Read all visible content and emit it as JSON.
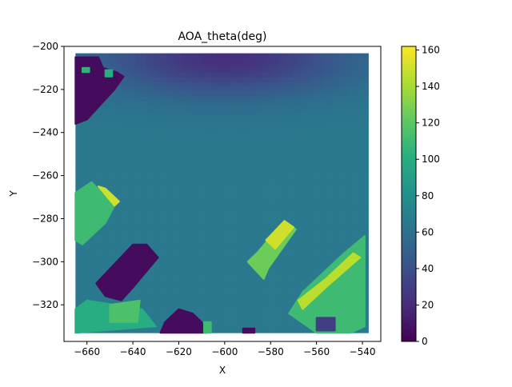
{
  "chart_data": {
    "type": "heatmap",
    "title": "AOA_theta(deg)",
    "xlabel": "X",
    "ylabel": "Y",
    "xlim": [
      -670,
      -532
    ],
    "ylim": [
      -337,
      -200
    ],
    "xticks": [
      -660,
      -640,
      -620,
      -600,
      -580,
      -560,
      -540
    ],
    "yticks": [
      -200,
      -220,
      -240,
      -260,
      -280,
      -300,
      -320
    ],
    "grid": false,
    "colormap": "viridis",
    "colorbar": {
      "min": 0,
      "max": 162,
      "ticks": [
        0,
        20,
        40,
        60,
        80,
        100,
        120,
        140,
        160
      ]
    },
    "extent": {
      "x": [
        -665,
        -539
      ],
      "y": [
        -333,
        -205
      ]
    },
    "background_field": {
      "description_values": "base value ~65 deg, decreasing toward top center",
      "base": 65,
      "top_center": {
        "x": -600,
        "y": -205,
        "value": 22,
        "spread_x": 55,
        "spread_y": 18
      }
    },
    "regions": [
      {
        "id": "dark-top-left",
        "value": 5,
        "poly": [
          [
            -665,
            -205
          ],
          [
            -655,
            -205
          ],
          [
            -653,
            -210
          ],
          [
            -647,
            -212
          ],
          [
            -644,
            -214
          ],
          [
            -648,
            -220
          ],
          [
            -660,
            -234
          ],
          [
            -665,
            -236
          ]
        ]
      },
      {
        "id": "teal-top-left-spots",
        "value": 105,
        "poly": [
          [
            -662,
            -210
          ],
          [
            -659,
            -210
          ],
          [
            -659,
            -212
          ],
          [
            -662,
            -212
          ]
        ]
      },
      {
        "id": "teal-top-left-spot2",
        "value": 100,
        "poly": [
          [
            -652,
            -211
          ],
          [
            -649,
            -211
          ],
          [
            -649,
            -214
          ],
          [
            -652,
            -214
          ]
        ]
      },
      {
        "id": "green-left-band",
        "value": 110,
        "poly": [
          [
            -665,
            -268
          ],
          [
            -658,
            -263
          ],
          [
            -648,
            -274
          ],
          [
            -652,
            -282
          ],
          [
            -662,
            -292
          ],
          [
            -665,
            -290
          ]
        ]
      },
      {
        "id": "yellow-left-edge",
        "value": 150,
        "poly": [
          [
            -655,
            -265
          ],
          [
            -652,
            -266
          ],
          [
            -646,
            -272
          ],
          [
            -648,
            -274
          ]
        ]
      },
      {
        "id": "dark-mid-left",
        "value": 5,
        "poly": [
          [
            -640,
            -292
          ],
          [
            -634,
            -292
          ],
          [
            -629,
            -298
          ],
          [
            -640,
            -312
          ],
          [
            -645,
            -318
          ],
          [
            -652,
            -316
          ],
          [
            -656,
            -310
          ]
        ]
      },
      {
        "id": "green-bottom-left",
        "value": 100,
        "poly": [
          [
            -660,
            -318
          ],
          [
            -648,
            -320
          ],
          [
            -636,
            -322
          ],
          [
            -630,
            -330
          ],
          [
            -665,
            -333
          ],
          [
            -665,
            -322
          ]
        ]
      },
      {
        "id": "green-bottom-left-inner",
        "value": 115,
        "poly": [
          [
            -650,
            -320
          ],
          [
            -637,
            -318
          ],
          [
            -638,
            -328
          ],
          [
            -650,
            -328
          ]
        ]
      },
      {
        "id": "dark-bottom-mid",
        "value": 5,
        "poly": [
          [
            -620,
            -322
          ],
          [
            -614,
            -324
          ],
          [
            -610,
            -328
          ],
          [
            -608,
            -333
          ],
          [
            -628,
            -333
          ],
          [
            -626,
            -328
          ]
        ]
      },
      {
        "id": "green-bottom-mid-spot",
        "value": 110,
        "poly": [
          [
            -609,
            -328
          ],
          [
            -606,
            -328
          ],
          [
            -606,
            -333
          ],
          [
            -609,
            -333
          ]
        ]
      },
      {
        "id": "dark-bottom-center",
        "value": 5,
        "poly": [
          [
            -592,
            -331
          ],
          [
            -587,
            -331
          ],
          [
            -587,
            -333
          ],
          [
            -592,
            -333
          ]
        ]
      },
      {
        "id": "green-mid-right-ring",
        "value": 125,
        "poly": [
          [
            -586,
            -296
          ],
          [
            -574,
            -281
          ],
          [
            -569,
            -285
          ],
          [
            -581,
            -303
          ],
          [
            -583,
            -308
          ],
          [
            -590,
            -300
          ]
        ]
      },
      {
        "id": "yellow-mid-right-ring",
        "value": 150,
        "poly": [
          [
            -582,
            -290
          ],
          [
            -574,
            -281
          ],
          [
            -570,
            -284
          ],
          [
            -578,
            -294
          ]
        ]
      },
      {
        "id": "green-bottom-right",
        "value": 110,
        "poly": [
          [
            -566,
            -314
          ],
          [
            -548,
            -296
          ],
          [
            -539,
            -288
          ],
          [
            -539,
            -330
          ],
          [
            -545,
            -333
          ],
          [
            -560,
            -333
          ],
          [
            -572,
            -324
          ]
        ]
      },
      {
        "id": "yellow-bottom-right-edge",
        "value": 145,
        "poly": [
          [
            -568,
            -318
          ],
          [
            -556,
            -308
          ],
          [
            -544,
            -296
          ],
          [
            -541,
            -298
          ],
          [
            -556,
            -312
          ],
          [
            -566,
            -322
          ]
        ]
      },
      {
        "id": "purple-bottom-right-spot",
        "value": 30,
        "poly": [
          [
            -560,
            -326
          ],
          [
            -552,
            -326
          ],
          [
            -552,
            -332
          ],
          [
            -560,
            -332
          ]
        ]
      }
    ]
  }
}
